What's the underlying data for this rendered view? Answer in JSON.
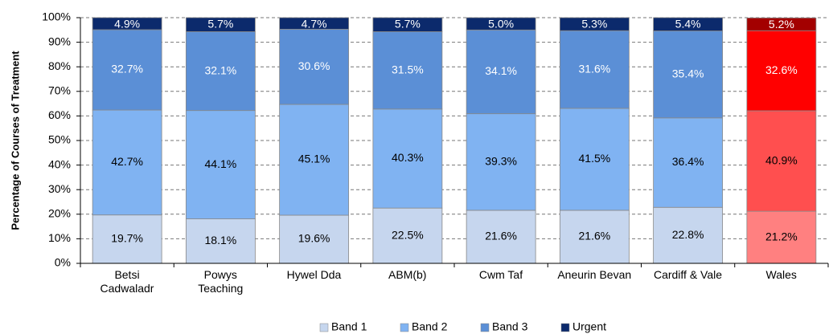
{
  "chart_data": {
    "type": "stacked_bar",
    "y_label": "Percentage of Courses of Treatment",
    "categories": [
      "Betsi\nCadwaladr",
      "Powys\nTeaching",
      "Hywel Dda",
      "ABM(b)",
      "Cwm Taf",
      "Aneurin Bevan",
      "Cardiff & Vale",
      "Wales"
    ],
    "series": [
      {
        "name": "Band 1",
        "color": "#c6d6ee",
        "colors": [
          "#c6d6ee",
          "#c6d6ee",
          "#c6d6ee",
          "#c6d6ee",
          "#c6d6ee",
          "#c6d6ee",
          "#c6d6ee",
          "#ff8080"
        ],
        "label_color": "#000000",
        "values": [
          19.7,
          18.1,
          19.6,
          22.5,
          21.6,
          21.6,
          22.8,
          21.2
        ],
        "value_labels": [
          "19.7%",
          "18.1%",
          "19.6%",
          "22.5%",
          "21.6%",
          "21.6%",
          "22.8%",
          "21.2%"
        ]
      },
      {
        "name": "Band 2",
        "color": "#80b3f2",
        "colors": [
          "#80b3f2",
          "#80b3f2",
          "#80b3f2",
          "#80b3f2",
          "#80b3f2",
          "#80b3f2",
          "#80b3f2",
          "#ff4f4f"
        ],
        "label_color": "#000000",
        "values": [
          42.7,
          44.1,
          45.1,
          40.3,
          39.3,
          41.5,
          36.4,
          40.9
        ],
        "value_labels": [
          "42.7%",
          "44.1%",
          "45.1%",
          "40.3%",
          "39.3%",
          "41.5%",
          "36.4%",
          "40.9%"
        ]
      },
      {
        "name": "Band 3",
        "color": "#5b8fd6",
        "colors": [
          "#5b8fd6",
          "#5b8fd6",
          "#5b8fd6",
          "#5b8fd6",
          "#5b8fd6",
          "#5b8fd6",
          "#5b8fd6",
          "#ff0000"
        ],
        "label_color": "#ffffff",
        "values": [
          32.7,
          32.1,
          30.6,
          31.5,
          34.1,
          31.6,
          35.4,
          32.6
        ],
        "value_labels": [
          "32.7%",
          "32.1%",
          "30.6%",
          "31.5%",
          "34.1%",
          "31.6%",
          "35.4%",
          "32.6%"
        ]
      },
      {
        "name": "Urgent",
        "color": "#0c2a6c",
        "colors": [
          "#0c2a6c",
          "#0c2a6c",
          "#0c2a6c",
          "#0c2a6c",
          "#0c2a6c",
          "#0c2a6c",
          "#0c2a6c",
          "#a30000"
        ],
        "label_color": "#ffffff",
        "values": [
          4.9,
          5.7,
          4.7,
          5.7,
          5.0,
          5.3,
          5.4,
          5.2
        ],
        "value_labels": [
          "4.9%",
          "5.7%",
          "4.7%",
          "5.7%",
          "5.0%",
          "5.3%",
          "5.4%",
          "5.2%"
        ]
      }
    ],
    "ylim": [
      0,
      100
    ],
    "yticks": [
      {
        "value": 0,
        "label": "0%"
      },
      {
        "value": 10,
        "label": "10%"
      },
      {
        "value": 20,
        "label": "20%"
      },
      {
        "value": 30,
        "label": "30%"
      },
      {
        "value": 40,
        "label": "40%"
      },
      {
        "value": 50,
        "label": "50%"
      },
      {
        "value": 60,
        "label": "60%"
      },
      {
        "value": 70,
        "label": "70%"
      },
      {
        "value": 80,
        "label": "80%"
      },
      {
        "value": 90,
        "label": "90%"
      },
      {
        "value": 100,
        "label": "100%"
      }
    ],
    "grid": true,
    "legend": "bottom"
  }
}
